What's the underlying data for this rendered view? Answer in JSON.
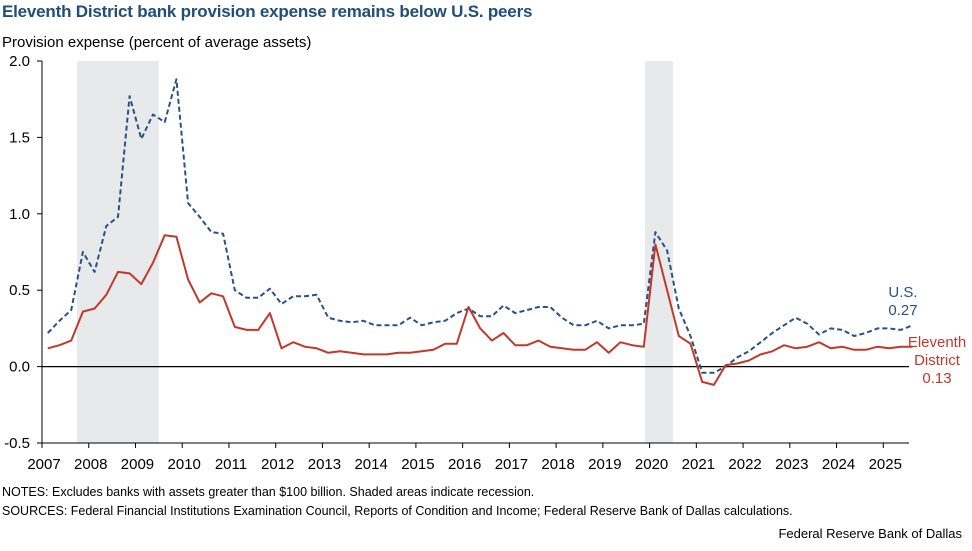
{
  "title": "Eleventh District bank provision expense remains below U.S. peers",
  "notes": "NOTES: Excludes banks with assets greater than $100 billion. Shaded areas indicate recession.",
  "sources": "SOURCES: Federal Financial Institutions Examination Council, Reports of Condition and Income; Federal Reserve Bank of Dallas calculations.",
  "credit": "Federal Reserve Bank of Dallas",
  "colors": {
    "us": "#2a5088",
    "eleventh": "#c0392b",
    "recession": "#e8e9eb"
  },
  "chart_data": {
    "type": "line",
    "title": "Eleventh District bank provision expense remains below U.S. peers",
    "xlabel": "",
    "ylabel": "Provision expense (percent of average assets)",
    "ylim": [
      -0.5,
      2.0
    ],
    "yticks": [
      "2.0",
      "1.5",
      "1.0",
      "0.5",
      "0.0",
      "-0.5"
    ],
    "ytick_values": [
      2.0,
      1.5,
      1.0,
      0.5,
      0.0,
      -0.5
    ],
    "xticks": [
      "2007",
      "2008",
      "2009",
      "2010",
      "2011",
      "2012",
      "2013",
      "2014",
      "2015",
      "2016",
      "2017",
      "2018",
      "2019",
      "2020",
      "2021",
      "2022",
      "2023",
      "2024",
      "2025"
    ],
    "x_start": 2007.125,
    "x_step": 0.25,
    "recessions": [
      [
        2007.75,
        2009.5
      ],
      [
        2019.9,
        2020.5
      ]
    ],
    "series": [
      {
        "name": "U.S.",
        "style": "dashed",
        "end_label": [
          "U.S.",
          "0.27"
        ],
        "values": [
          0.22,
          0.3,
          0.37,
          0.75,
          0.62,
          0.92,
          0.98,
          1.77,
          1.49,
          1.65,
          1.6,
          1.88,
          1.07,
          0.98,
          0.88,
          0.87,
          0.5,
          0.45,
          0.45,
          0.51,
          0.41,
          0.46,
          0.46,
          0.47,
          0.32,
          0.3,
          0.29,
          0.3,
          0.27,
          0.27,
          0.27,
          0.32,
          0.27,
          0.29,
          0.3,
          0.35,
          0.38,
          0.33,
          0.33,
          0.4,
          0.35,
          0.37,
          0.39,
          0.39,
          0.32,
          0.27,
          0.27,
          0.3,
          0.25,
          0.27,
          0.27,
          0.28,
          0.88,
          0.76,
          0.38,
          0.2,
          -0.04,
          -0.04,
          0.0,
          0.06,
          0.1,
          0.16,
          0.22,
          0.27,
          0.32,
          0.28,
          0.21,
          0.25,
          0.24,
          0.2,
          0.22,
          0.25,
          0.25,
          0.24,
          0.27
        ]
      },
      {
        "name": "Eleventh District",
        "style": "solid",
        "end_label": [
          "Eleventh",
          "District",
          "0.13"
        ],
        "values": [
          0.12,
          0.14,
          0.17,
          0.36,
          0.38,
          0.47,
          0.62,
          0.61,
          0.54,
          0.68,
          0.86,
          0.85,
          0.57,
          0.42,
          0.48,
          0.46,
          0.26,
          0.24,
          0.24,
          0.35,
          0.12,
          0.16,
          0.13,
          0.12,
          0.09,
          0.1,
          0.09,
          0.08,
          0.08,
          0.08,
          0.09,
          0.09,
          0.1,
          0.11,
          0.15,
          0.15,
          0.39,
          0.25,
          0.17,
          0.22,
          0.14,
          0.14,
          0.17,
          0.13,
          0.12,
          0.11,
          0.11,
          0.16,
          0.09,
          0.16,
          0.14,
          0.13,
          0.8,
          0.5,
          0.2,
          0.15,
          -0.1,
          -0.12,
          0.01,
          0.02,
          0.04,
          0.08,
          0.1,
          0.14,
          0.12,
          0.13,
          0.16,
          0.12,
          0.13,
          0.11,
          0.11,
          0.13,
          0.12,
          0.13,
          0.13
        ]
      }
    ]
  }
}
